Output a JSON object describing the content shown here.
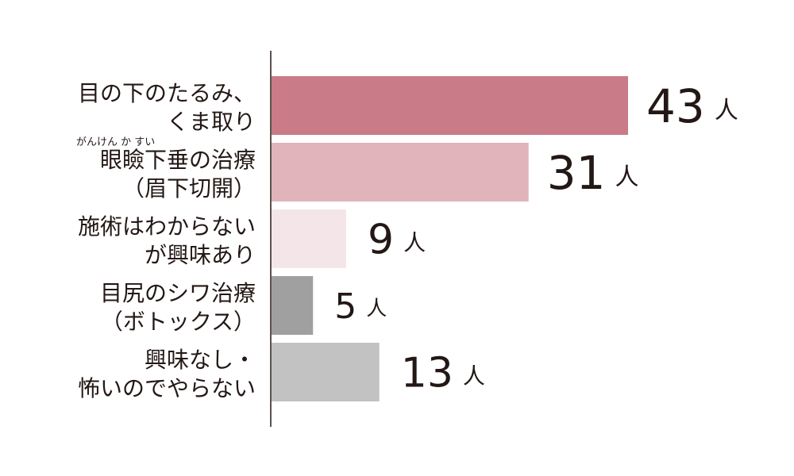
{
  "chart_data": {
    "type": "bar",
    "orientation": "horizontal",
    "unit": "人",
    "categories": [
      {
        "lines": [
          "目の下のたるみ、",
          "くま取り"
        ],
        "ruby": ""
      },
      {
        "lines": [
          "眼瞼下垂の治療",
          "（眉下切開）"
        ],
        "ruby": "がんけん か すい"
      },
      {
        "lines": [
          "施術はわからない",
          "が興味あり"
        ],
        "ruby": ""
      },
      {
        "lines": [
          "目尻のシワ治療",
          "（ボトックス）"
        ],
        "ruby": ""
      },
      {
        "lines": [
          "興味なし・",
          "怖いのでやらない"
        ],
        "ruby": ""
      }
    ],
    "values": [
      43,
      31,
      9,
      5,
      13
    ],
    "colors": [
      "#c97b88",
      "#e1b3ba",
      "#f4e6e8",
      "#a0a0a0",
      "#c2c2c2"
    ],
    "xlim": [
      0,
      50
    ],
    "grid": false,
    "legend": "none"
  }
}
